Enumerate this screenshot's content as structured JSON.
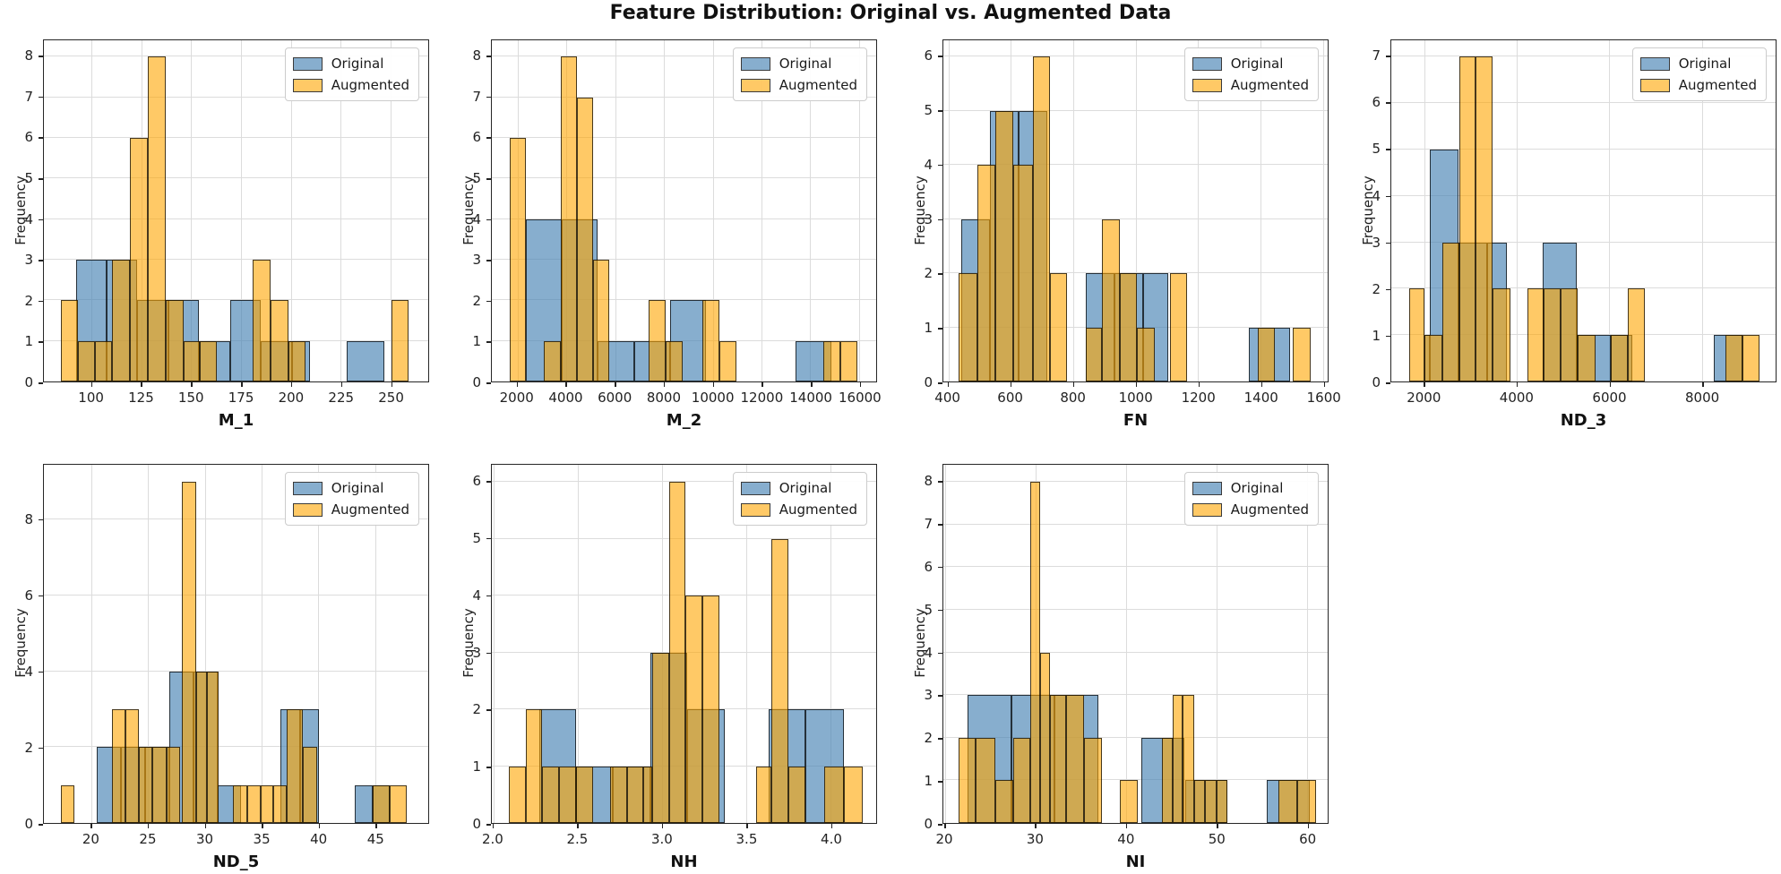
{
  "title": "Feature Distribution: Original vs. Augmented Data",
  "ylabel": "Frequency",
  "legend": {
    "items": [
      {
        "name": "Original"
      },
      {
        "name": "Augmented"
      }
    ]
  },
  "colors": {
    "original_fill": "rgba(70,130,180,0.65)",
    "augmented_fill": "rgba(255,165,0,0.60)",
    "overlap_appearance": "#cfa952",
    "edge": "rgba(0,0,0,0.72)",
    "grid": "#dcdcdc",
    "spine": "#262626"
  },
  "chart_data": [
    {
      "type": "bar",
      "subtype": "overlaid-histogram",
      "xlabel": "M_1",
      "xlim": [
        76,
        269
      ],
      "ylim": [
        0,
        8.4
      ],
      "xticks": [
        100,
        125,
        150,
        175,
        200,
        225,
        250
      ],
      "xtick_labels": [
        "100",
        "125",
        "150",
        "175",
        "200",
        "225",
        "250"
      ],
      "yticks": [
        0,
        1,
        2,
        3,
        4,
        5,
        6,
        7,
        8
      ],
      "grid": true,
      "legend_position": "upper right",
      "series": [
        {
          "name": "Original",
          "bars": [
            [
              92,
              107.5,
              3
            ],
            [
              107.5,
              123,
              3
            ],
            [
              123,
              138.5,
              2
            ],
            [
              138.5,
              154,
              2
            ],
            [
              154,
              169.5,
              1
            ],
            [
              169.5,
              185,
              2
            ],
            [
              185,
              200.5,
              1
            ],
            [
              200.5,
              209.5,
              1
            ],
            [
              228,
              247,
              1
            ]
          ]
        },
        {
          "name": "Augmented",
          "bars": [
            [
              84.5,
              93,
              2
            ],
            [
              93,
              101.5,
              1
            ],
            [
              101.5,
              110,
              1
            ],
            [
              110,
              119,
              3
            ],
            [
              119,
              128,
              6
            ],
            [
              128,
              137,
              8
            ],
            [
              137,
              146,
              2
            ],
            [
              146,
              154.5,
              1
            ],
            [
              154.5,
              163,
              1
            ],
            [
              181,
              190,
              3
            ],
            [
              190,
              199,
              2
            ],
            [
              199,
              207.5,
              1
            ],
            [
              250.5,
              259,
              2
            ]
          ]
        }
      ]
    },
    {
      "type": "bar",
      "subtype": "overlaid-histogram",
      "xlabel": "M_2",
      "xlim": [
        950,
        16700
      ],
      "ylim": [
        0,
        8.4
      ],
      "xticks": [
        2000,
        4000,
        6000,
        8000,
        10000,
        12000,
        14000,
        16000
      ],
      "xtick_labels": [
        "2000",
        "4000",
        "6000",
        "8000",
        "10000",
        "12000",
        "14000",
        "16000"
      ],
      "yticks": [
        0,
        1,
        2,
        3,
        4,
        5,
        6,
        7,
        8
      ],
      "grid": true,
      "legend_position": "upper right",
      "series": [
        {
          "name": "Original",
          "bars": [
            [
              2350,
              3825,
              4
            ],
            [
              3825,
              5300,
              4
            ],
            [
              5300,
              6775,
              1
            ],
            [
              6775,
              8250,
              1
            ],
            [
              8250,
              9725,
              2
            ],
            [
              13400,
              14875,
              1
            ]
          ]
        },
        {
          "name": "Augmented",
          "bars": [
            [
              1690,
              2360,
              6
            ],
            [
              3090,
              3790,
              1
            ],
            [
              3790,
              4440,
              8
            ],
            [
              4440,
              5100,
              7
            ],
            [
              5100,
              5770,
              3
            ],
            [
              7370,
              8070,
              2
            ],
            [
              8070,
              8780,
              1
            ],
            [
              9590,
              10290,
              2
            ],
            [
              10290,
              10990,
              1
            ],
            [
              14520,
              15220,
              1
            ],
            [
              15220,
              15920,
              1
            ]
          ]
        }
      ]
    },
    {
      "type": "bar",
      "subtype": "overlaid-histogram",
      "xlabel": "FN",
      "xlim": [
        384,
        1615
      ],
      "ylim": [
        0,
        6.3
      ],
      "xticks": [
        400,
        600,
        800,
        1000,
        1200,
        1400,
        1600
      ],
      "xtick_labels": [
        "400",
        "600",
        "800",
        "1000",
        "1200",
        "1400",
        "1600"
      ],
      "yticks": [
        0,
        1,
        2,
        3,
        4,
        5,
        6
      ],
      "grid": true,
      "legend_position": "upper right",
      "series": [
        {
          "name": "Original",
          "bars": [
            [
              440,
              532,
              3
            ],
            [
              532,
              624,
              5
            ],
            [
              624,
              716,
              5
            ],
            [
              839,
              931,
              2
            ],
            [
              931,
              1023,
              2
            ],
            [
              1023,
              1105,
              2
            ],
            [
              1362,
              1495,
              1
            ]
          ]
        },
        {
          "name": "Augmented",
          "bars": [
            [
              432,
              493,
              2
            ],
            [
              493,
              549,
              4
            ],
            [
              549,
              609,
              5
            ],
            [
              609,
              670,
              4
            ],
            [
              670,
              725,
              6
            ],
            [
              725,
              781,
              2
            ],
            [
              839,
              891,
              1
            ],
            [
              891,
              949,
              3
            ],
            [
              949,
              1005,
              2
            ],
            [
              1005,
              1060,
              1
            ],
            [
              1110,
              1165,
              2
            ],
            [
              1390,
              1447,
              1
            ],
            [
              1503,
              1560,
              1
            ]
          ]
        }
      ]
    },
    {
      "type": "bar",
      "subtype": "overlaid-histogram",
      "xlabel": "ND_3",
      "xlim": [
        1280,
        9600
      ],
      "ylim": [
        0,
        7.35
      ],
      "xticks": [
        2000,
        4000,
        6000,
        8000
      ],
      "xtick_labels": [
        "2000",
        "4000",
        "6000",
        "8000"
      ],
      "yticks": [
        0,
        1,
        2,
        3,
        4,
        5,
        6,
        7
      ],
      "grid": true,
      "legend_position": "upper right",
      "series": [
        {
          "name": "Original",
          "bars": [
            [
              1995,
              2110,
              1
            ],
            [
              2110,
              2740,
              5
            ],
            [
              2740,
              3360,
              3
            ],
            [
              3360,
              3790,
              3
            ],
            [
              4550,
              5290,
              3
            ],
            [
              5290,
              6030,
              1
            ],
            [
              6030,
              6500,
              1
            ],
            [
              8270,
              8890,
              1
            ]
          ]
        },
        {
          "name": "Augmented",
          "bars": [
            [
              1670,
              2000,
              2
            ],
            [
              2000,
              2380,
              1
            ],
            [
              2380,
              2745,
              3
            ],
            [
              2745,
              3110,
              7
            ],
            [
              3110,
              3480,
              7
            ],
            [
              3480,
              3855,
              2
            ],
            [
              4220,
              4580,
              2
            ],
            [
              4580,
              4950,
              2
            ],
            [
              4950,
              5320,
              2
            ],
            [
              5320,
              5700,
              1
            ],
            [
              6030,
              6400,
              1
            ],
            [
              6400,
              6770,
              2
            ],
            [
              8520,
              8890,
              1
            ],
            [
              8890,
              9260,
              1
            ]
          ]
        }
      ]
    },
    {
      "type": "bar",
      "subtype": "overlaid-histogram",
      "xlabel": "ND_5",
      "xlim": [
        15.8,
        49.7
      ],
      "ylim": [
        0,
        9.45
      ],
      "xticks": [
        20,
        25,
        30,
        35,
        40,
        45
      ],
      "xtick_labels": [
        "20",
        "25",
        "30",
        "35",
        "40",
        "45"
      ],
      "yticks": [
        0,
        2,
        4,
        6,
        8
      ],
      "grid": true,
      "legend_position": "upper right",
      "series": [
        {
          "name": "Original",
          "bars": [
            [
              20.5,
              22.6,
              2
            ],
            [
              22.6,
              24.7,
              2
            ],
            [
              24.7,
              26.9,
              2
            ],
            [
              26.9,
              29.0,
              4
            ],
            [
              29.0,
              31.1,
              4
            ],
            [
              31.1,
              33.2,
              1
            ],
            [
              36.7,
              38.4,
              3
            ],
            [
              38.4,
              40.1,
              3
            ],
            [
              43.2,
              44.8,
              1
            ],
            [
              44.8,
              46.3,
              1
            ]
          ]
        },
        {
          "name": "Augmented",
          "bars": [
            [
              17.3,
              18.5,
              1
            ],
            [
              21.8,
              23.0,
              3
            ],
            [
              23.0,
              24.2,
              3
            ],
            [
              24.2,
              25.4,
              2
            ],
            [
              25.4,
              26.6,
              2
            ],
            [
              26.6,
              27.8,
              2
            ],
            [
              28.0,
              29.2,
              9
            ],
            [
              29.2,
              30.2,
              4
            ],
            [
              30.2,
              31.2,
              4
            ],
            [
              32.5,
              33.7,
              1
            ],
            [
              33.7,
              34.9,
              1
            ],
            [
              34.9,
              36.0,
              1
            ],
            [
              36.0,
              37.2,
              1
            ],
            [
              37.2,
              38.6,
              3
            ],
            [
              38.6,
              39.9,
              2
            ],
            [
              44.8,
              46.3,
              1
            ],
            [
              46.3,
              47.8,
              1
            ]
          ]
        }
      ]
    },
    {
      "type": "bar",
      "subtype": "overlaid-histogram",
      "xlabel": "NH",
      "xlim": [
        1.99,
        4.27
      ],
      "ylim": [
        0,
        6.3
      ],
      "xticks": [
        2.0,
        2.5,
        3.0,
        3.5,
        4.0
      ],
      "xtick_labels": [
        "2.0",
        "2.5",
        "3.0",
        "3.5",
        "4.0"
      ],
      "yticks": [
        0,
        1,
        2,
        3,
        4,
        5,
        6
      ],
      "grid": true,
      "legend_position": "upper right",
      "series": [
        {
          "name": "Original",
          "bars": [
            [
              2.27,
              2.49,
              2
            ],
            [
              2.49,
              2.71,
              1
            ],
            [
              2.71,
              2.93,
              1
            ],
            [
              2.93,
              3.15,
              3
            ],
            [
              3.15,
              3.37,
              2
            ],
            [
              3.63,
              3.85,
              2
            ],
            [
              3.85,
              4.08,
              2
            ]
          ]
        },
        {
          "name": "Augmented",
          "bars": [
            [
              2.09,
              2.19,
              1
            ],
            [
              2.19,
              2.29,
              2
            ],
            [
              2.29,
              2.39,
              1
            ],
            [
              2.39,
              2.49,
              1
            ],
            [
              2.49,
              2.59,
              1
            ],
            [
              2.69,
              2.79,
              1
            ],
            [
              2.79,
              2.89,
              1
            ],
            [
              2.89,
              2.94,
              1
            ],
            [
              2.94,
              3.04,
              3
            ],
            [
              3.04,
              3.14,
              6
            ],
            [
              3.14,
              3.24,
              4
            ],
            [
              3.24,
              3.34,
              4
            ],
            [
              3.56,
              3.65,
              1
            ],
            [
              3.65,
              3.75,
              5
            ],
            [
              3.75,
              3.85,
              1
            ],
            [
              3.96,
              4.08,
              1
            ],
            [
              4.08,
              4.19,
              1
            ]
          ]
        }
      ]
    },
    {
      "type": "bar",
      "subtype": "overlaid-histogram",
      "xlabel": "NI",
      "xlim": [
        19.8,
        62.3
      ],
      "ylim": [
        0,
        8.4
      ],
      "xticks": [
        20,
        30,
        40,
        50,
        60
      ],
      "xtick_labels": [
        "20",
        "30",
        "40",
        "50",
        "60"
      ],
      "yticks": [
        0,
        1,
        2,
        3,
        4,
        5,
        6,
        7,
        8
      ],
      "grid": true,
      "legend_position": "upper right",
      "series": [
        {
          "name": "Original",
          "bars": [
            [
              22.5,
              27.3,
              3
            ],
            [
              27.3,
              32.1,
              3
            ],
            [
              32.1,
              36.9,
              3
            ],
            [
              41.7,
              46.5,
              2
            ],
            [
              46.5,
              51.2,
              1
            ],
            [
              55.6,
              60.3,
              1
            ]
          ]
        },
        {
          "name": "Augmented",
          "bars": [
            [
              21.5,
              23.4,
              2
            ],
            [
              23.4,
              25.5,
              2
            ],
            [
              25.5,
              27.5,
              1
            ],
            [
              27.5,
              29.4,
              2
            ],
            [
              29.4,
              30.5,
              8
            ],
            [
              30.5,
              31.6,
              4
            ],
            [
              31.6,
              33.4,
              3
            ],
            [
              33.4,
              35.4,
              3
            ],
            [
              35.4,
              37.3,
              2
            ],
            [
              39.3,
              41.3,
              1
            ],
            [
              44.0,
              45.2,
              2
            ],
            [
              45.2,
              46.3,
              3
            ],
            [
              46.3,
              47.5,
              3
            ],
            [
              47.5,
              48.7,
              1
            ],
            [
              48.7,
              50.0,
              1
            ],
            [
              50.0,
              51.2,
              1
            ],
            [
              56.9,
              58.9,
              1
            ],
            [
              58.9,
              61.0,
              1
            ]
          ]
        }
      ]
    }
  ]
}
